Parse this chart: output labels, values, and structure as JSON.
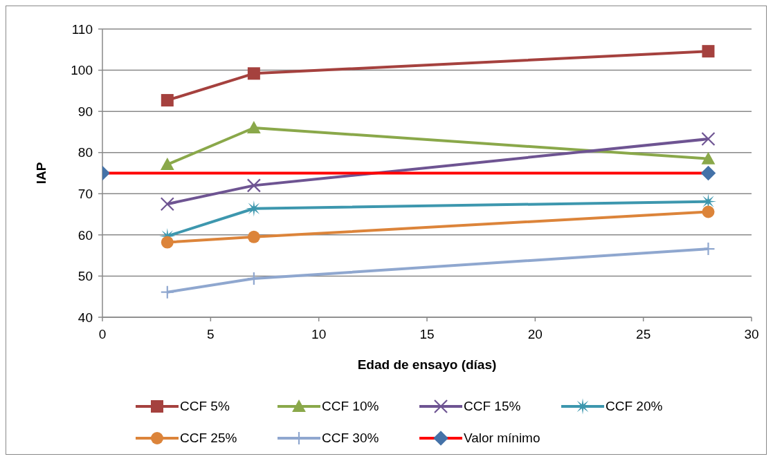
{
  "chart_data": {
    "type": "line",
    "xlabel": "Edad de ensayo (días)",
    "ylabel": "IAP",
    "x": [
      3,
      7,
      28
    ],
    "xlim": [
      0,
      30
    ],
    "xticks": [
      0,
      5,
      10,
      15,
      20,
      25,
      30
    ],
    "ylim": [
      40,
      110
    ],
    "yticks": [
      40,
      50,
      60,
      70,
      80,
      90,
      100,
      110
    ],
    "grid": "y",
    "legend": "bottom",
    "series": [
      {
        "name": "CCF 5%",
        "color": "#a5413e",
        "marker": "square",
        "values": [
          92.7,
          99.2,
          104.6
        ]
      },
      {
        "name": "CCF 10%",
        "color": "#8aa84a",
        "marker": "triangle",
        "values": [
          77.1,
          86.0,
          78.5
        ]
      },
      {
        "name": "CCF 15%",
        "color": "#6e5492",
        "marker": "cross",
        "values": [
          67.5,
          72.0,
          83.3
        ]
      },
      {
        "name": "CCF 20%",
        "color": "#3d97ae",
        "marker": "star",
        "values": [
          59.7,
          66.4,
          68.1
        ]
      },
      {
        "name": "CCF 25%",
        "color": "#dc843a",
        "marker": "circle",
        "values": [
          58.2,
          59.5,
          65.6
        ]
      },
      {
        "name": "CCF 30%",
        "color": "#8fa7cf",
        "marker": "plus",
        "values": [
          46.1,
          49.4,
          56.6
        ]
      },
      {
        "name": "Valor mínimo",
        "color": "#ff0000",
        "marker": "diamond",
        "colors": [
          "#4472a8",
          "#4472a8"
        ],
        "x": [
          0,
          28
        ],
        "values": [
          75,
          75
        ]
      }
    ]
  }
}
